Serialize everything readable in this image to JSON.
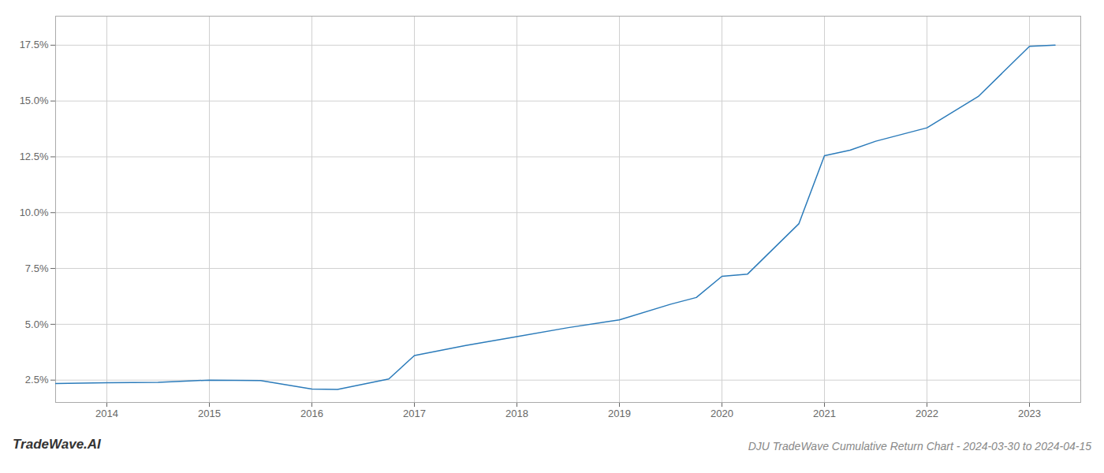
{
  "chart_data": {
    "type": "line",
    "title": "DJU TradeWave Cumulative Return Chart - 2024-03-30 to 2024-04-15",
    "annotations": [
      "TradeWave.AI"
    ],
    "x": [
      2013.5,
      2014.0,
      2014.5,
      2015.0,
      2015.5,
      2016.0,
      2016.25,
      2016.75,
      2017.0,
      2017.5,
      2018.0,
      2018.5,
      2019.0,
      2019.5,
      2019.75,
      2020.0,
      2020.25,
      2020.75,
      2021.0,
      2021.25,
      2021.5,
      2022.0,
      2022.5,
      2023.0,
      2023.25
    ],
    "values": [
      2.35,
      2.38,
      2.4,
      2.5,
      2.48,
      2.1,
      2.08,
      2.55,
      3.6,
      4.05,
      4.45,
      4.85,
      5.2,
      5.9,
      6.2,
      7.15,
      7.25,
      9.5,
      12.55,
      12.8,
      13.2,
      13.8,
      15.2,
      17.45,
      17.5
    ],
    "color": "#2b7bba",
    "xlim": [
      2013.5,
      2023.5
    ],
    "xticks": [
      2014,
      2015,
      2016,
      2017,
      2018,
      2019,
      2020,
      2021,
      2022,
      2023
    ],
    "ylim": [
      1.5,
      18.8
    ],
    "yticks": [
      {
        "value": 2.5,
        "label": "2.5%"
      },
      {
        "value": 5.0,
        "label": "5.0%"
      },
      {
        "value": 7.5,
        "label": "7.5%"
      },
      {
        "value": 10.0,
        "label": "10.0%"
      },
      {
        "value": 12.5,
        "label": "12.5%"
      },
      {
        "value": 15.0,
        "label": "15.0%"
      },
      {
        "value": 17.5,
        "label": "17.5%"
      }
    ],
    "grid": true
  }
}
